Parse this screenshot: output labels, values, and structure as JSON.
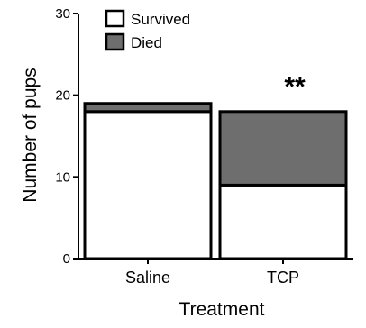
{
  "chart_data": {
    "type": "bar",
    "stacked": true,
    "categories": [
      "Saline",
      "TCP"
    ],
    "series": [
      {
        "name": "Survived",
        "values": [
          18,
          9
        ],
        "color": "#ffffff"
      },
      {
        "name": "Died",
        "values": [
          1,
          9
        ],
        "color": "#6e6e6e"
      }
    ],
    "xlabel": "Treatment",
    "ylabel": "Number of pups",
    "ylim": [
      0,
      30
    ],
    "yticks": [
      "0",
      "10",
      "20",
      "30"
    ],
    "legend_position": "top-left",
    "annotations": [
      {
        "category": "TCP",
        "text": "**"
      }
    ],
    "grid": false
  }
}
